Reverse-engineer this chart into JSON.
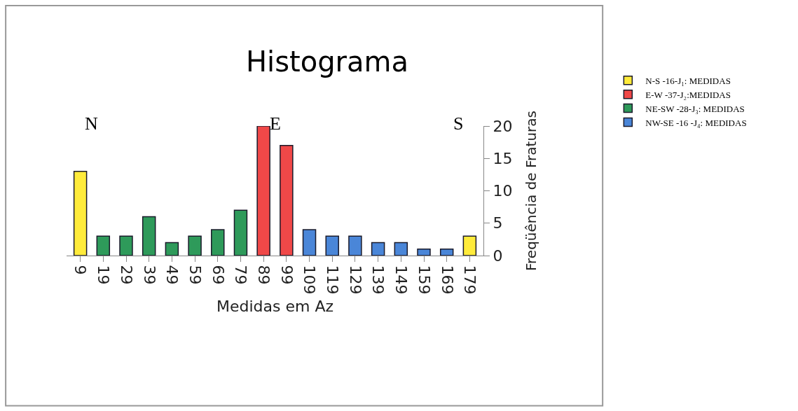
{
  "chart_data": {
    "type": "bar",
    "title": "Histograma",
    "xlabel": "Medidas em Az",
    "ylabel": "Freqüência de Fraturas",
    "categories": [
      "9",
      "19",
      "29",
      "39",
      "49",
      "59",
      "69",
      "79",
      "89",
      "99",
      "109",
      "119",
      "129",
      "139",
      "149",
      "159",
      "169",
      "179"
    ],
    "series": [
      {
        "name": "N-S -16-J₁: MEDIDAS",
        "color": "#ffeb3b",
        "values": [
          13,
          null,
          null,
          null,
          null,
          null,
          null,
          null,
          null,
          null,
          null,
          null,
          null,
          null,
          null,
          null,
          null,
          3
        ]
      },
      {
        "name": "E-W -37-J₂:MEDIDAS",
        "color": "#f04848",
        "values": [
          null,
          null,
          null,
          null,
          null,
          null,
          null,
          null,
          20,
          17,
          null,
          null,
          null,
          null,
          null,
          null,
          null,
          null
        ]
      },
      {
        "name": "NE-SW -28-J₃: MEDIDAS",
        "color": "#2e9a5a",
        "values": [
          null,
          3,
          3,
          6,
          2,
          3,
          4,
          7,
          null,
          null,
          null,
          null,
          null,
          null,
          null,
          null,
          null,
          null
        ]
      },
      {
        "name": "NW-SE -16 -J₄: MEDIDAS",
        "color": "#4a86d8",
        "values": [
          null,
          null,
          null,
          null,
          null,
          null,
          null,
          null,
          null,
          null,
          4,
          3,
          3,
          2,
          2,
          1,
          1,
          null
        ]
      }
    ],
    "ylim": [
      0,
      20
    ],
    "yticks": [
      0,
      5,
      10,
      15,
      20
    ],
    "grid": false,
    "legend": "right",
    "annotations": [
      "N",
      "E",
      "S"
    ]
  }
}
